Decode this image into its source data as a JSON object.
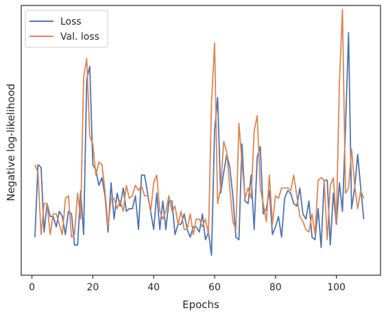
{
  "chart_data": {
    "type": "line",
    "xlabel": "Epochs",
    "ylabel": "Negative log-likelihood",
    "xlim": [
      -3.5,
      114.5
    ],
    "ylim": [
      0,
      1
    ],
    "xticks": [
      0,
      20,
      40,
      60,
      80,
      100
    ],
    "yticks_shown": false,
    "grid": false,
    "legend_position": "top-left",
    "series": [
      {
        "name": "Loss",
        "color": "#4c72b0",
        "x": [
          1,
          2,
          3,
          4,
          5,
          6,
          7,
          8,
          9,
          10,
          11,
          12,
          13,
          14,
          15,
          16,
          17,
          18,
          19,
          20,
          21,
          22,
          23,
          24,
          25,
          26,
          27,
          28,
          29,
          30,
          31,
          32,
          33,
          34,
          35,
          36,
          37,
          38,
          39,
          40,
          41,
          42,
          43,
          44,
          45,
          46,
          47,
          48,
          49,
          50,
          51,
          52,
          53,
          54,
          55,
          56,
          57,
          58,
          59,
          60,
          61,
          62,
          63,
          64,
          65,
          66,
          67,
          68,
          69,
          70,
          71,
          72,
          73,
          74,
          75,
          76,
          77,
          78,
          79,
          80,
          81,
          82,
          83,
          84,
          85,
          86,
          87,
          88,
          89,
          90,
          91,
          92,
          93,
          94,
          95,
          96,
          97,
          98,
          99,
          100,
          101,
          102,
          103,
          104,
          105,
          106,
          107,
          108,
          109
        ],
        "y": [
          0.11,
          0.39,
          0.38,
          0.13,
          0.24,
          0.19,
          0.19,
          0.15,
          0.21,
          0.19,
          0.12,
          0.21,
          0.2,
          0.08,
          0.08,
          0.29,
          0.12,
          0.72,
          0.77,
          0.39,
          0.37,
          0.31,
          0.34,
          0.27,
          0.13,
          0.32,
          0.18,
          0.28,
          0.23,
          0.3,
          0.21,
          0.22,
          0.22,
          0.27,
          0.14,
          0.35,
          0.35,
          0.28,
          0.21,
          0.14,
          0.28,
          0.14,
          0.25,
          0.14,
          0.25,
          0.25,
          0.12,
          0.16,
          0.16,
          0.2,
          0.14,
          0.11,
          0.15,
          0.15,
          0.13,
          0.2,
          0.1,
          0.13,
          0.04,
          0.52,
          0.65,
          0.28,
          0.36,
          0.43,
          0.38,
          0.27,
          0.11,
          0.1,
          0.47,
          0.25,
          0.24,
          0.35,
          0.14,
          0.42,
          0.46,
          0.2,
          0.22,
          0.29,
          0.12,
          0.15,
          0.19,
          0.11,
          0.26,
          0.29,
          0.28,
          0.24,
          0.23,
          0.3,
          0.2,
          0.18,
          0.25,
          0.11,
          0.1,
          0.22,
          0.07,
          0.33,
          0.33,
          0.08,
          0.28,
          0.16,
          0.32,
          0.21,
          0.53,
          0.9,
          0.22,
          0.3,
          0.43,
          0.3,
          0.18
        ]
      },
      {
        "name": "Val. loss",
        "color": "#dd8452",
        "x": [
          1,
          2,
          3,
          4,
          5,
          6,
          7,
          8,
          9,
          10,
          11,
          12,
          13,
          14,
          15,
          16,
          17,
          18,
          19,
          20,
          21,
          22,
          23,
          24,
          25,
          26,
          27,
          28,
          29,
          30,
          31,
          32,
          33,
          34,
          35,
          36,
          37,
          38,
          39,
          40,
          41,
          42,
          43,
          44,
          45,
          46,
          47,
          48,
          49,
          50,
          51,
          52,
          53,
          54,
          55,
          56,
          57,
          58,
          59,
          60,
          61,
          62,
          63,
          64,
          65,
          66,
          67,
          68,
          69,
          70,
          71,
          72,
          73,
          74,
          75,
          76,
          77,
          78,
          79,
          80,
          81,
          82,
          83,
          84,
          85,
          86,
          87,
          88,
          89,
          90,
          91,
          92,
          93,
          94,
          95,
          96,
          97,
          98,
          99,
          100,
          101,
          102,
          103,
          104,
          105,
          106,
          107,
          108,
          109
        ],
        "y": [
          0.39,
          0.36,
          0.12,
          0.24,
          0.24,
          0.12,
          0.2,
          0.2,
          0.16,
          0.12,
          0.26,
          0.27,
          0.11,
          0.12,
          0.28,
          0.18,
          0.73,
          0.8,
          0.5,
          0.47,
          0.35,
          0.4,
          0.39,
          0.29,
          0.15,
          0.26,
          0.26,
          0.22,
          0.25,
          0.21,
          0.31,
          0.26,
          0.27,
          0.31,
          0.29,
          0.31,
          0.27,
          0.27,
          0.21,
          0.32,
          0.35,
          0.21,
          0.18,
          0.21,
          0.27,
          0.21,
          0.23,
          0.16,
          0.21,
          0.14,
          0.14,
          0.2,
          0.12,
          0.18,
          0.18,
          0.15,
          0.18,
          0.12,
          0.63,
          0.86,
          0.24,
          0.3,
          0.48,
          0.44,
          0.3,
          0.17,
          0.14,
          0.55,
          0.4,
          0.26,
          0.3,
          0.26,
          0.52,
          0.58,
          0.3,
          0.24,
          0.17,
          0.35,
          0.16,
          0.27,
          0.26,
          0.3,
          0.3,
          0.3,
          0.29,
          0.35,
          0.27,
          0.19,
          0.17,
          0.14,
          0.13,
          0.2,
          0.12,
          0.33,
          0.34,
          0.33,
          0.1,
          0.31,
          0.34,
          0.17,
          0.71,
          0.99,
          0.28,
          0.3,
          0.45,
          0.31,
          0.22,
          0.29,
          0.26
        ]
      }
    ]
  }
}
